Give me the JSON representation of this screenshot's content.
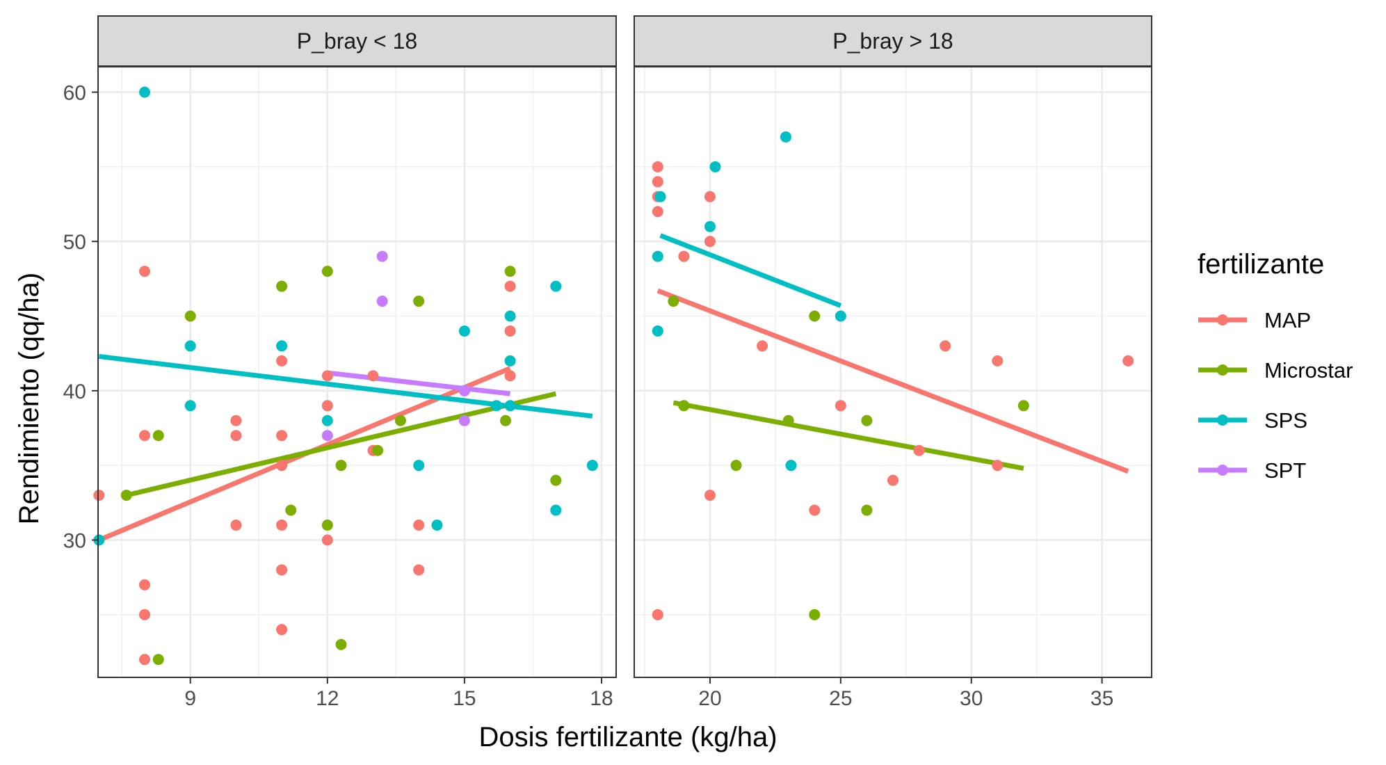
{
  "chart_data": {
    "type": "scatter",
    "xlabel": "Dosis  fertilizante (kg/ha)",
    "ylabel": "Rendimiento (qq/ha)",
    "legend": {
      "title": "fertilizante",
      "position": "right",
      "entries": [
        "MAP",
        "Microstar",
        "SPS",
        "SPT"
      ]
    },
    "colors": {
      "MAP": "#F8766D",
      "Microstar": "#7CAE00",
      "SPS": "#00BFC4",
      "SPT": "#C77CFF"
    },
    "grid": true,
    "ylim": [
      20.8,
      61.7
    ],
    "yticks": [
      30,
      40,
      50,
      60
    ],
    "panels": [
      {
        "strip": "P_bray < 18",
        "xlim": [
          6.98,
          18.32
        ],
        "xticks": [
          9,
          12,
          15,
          18
        ],
        "series": [
          {
            "name": "MAP",
            "points": [
              [
                7,
                33
              ],
              [
                8,
                48
              ],
              [
                8,
                37
              ],
              [
                8,
                27
              ],
              [
                8,
                25
              ],
              [
                8,
                22
              ],
              [
                10,
                38
              ],
              [
                10,
                37
              ],
              [
                10,
                31
              ],
              [
                11,
                42
              ],
              [
                11,
                37
              ],
              [
                11,
                35
              ],
              [
                11,
                31
              ],
              [
                11,
                28
              ],
              [
                11,
                24
              ],
              [
                12,
                41
              ],
              [
                12,
                39
              ],
              [
                12,
                30
              ],
              [
                13,
                41
              ],
              [
                13,
                36
              ],
              [
                14,
                31
              ],
              [
                14,
                28
              ],
              [
                16,
                47
              ],
              [
                16,
                44
              ],
              [
                16,
                41
              ]
            ],
            "fit": [
              [
                7,
                30.0
              ],
              [
                16,
                41.5
              ]
            ]
          },
          {
            "name": "Microstar",
            "points": [
              [
                7.6,
                33
              ],
              [
                8.3,
                37
              ],
              [
                8.3,
                22
              ],
              [
                9,
                45
              ],
              [
                11,
                47
              ],
              [
                11.2,
                32
              ],
              [
                12,
                48
              ],
              [
                12,
                31
              ],
              [
                12.3,
                35
              ],
              [
                12.3,
                23
              ],
              [
                13.1,
                36
              ],
              [
                13.6,
                38
              ],
              [
                14,
                46
              ],
              [
                15.9,
                38
              ],
              [
                16,
                48
              ],
              [
                17,
                34
              ]
            ],
            "fit": [
              [
                7.6,
                33.0
              ],
              [
                17,
                39.8
              ]
            ]
          },
          {
            "name": "SPS",
            "points": [
              [
                7,
                30
              ],
              [
                8,
                60
              ],
              [
                9,
                43
              ],
              [
                9,
                39
              ],
              [
                11,
                43
              ],
              [
                12,
                38
              ],
              [
                14,
                35
              ],
              [
                14.4,
                31
              ],
              [
                15,
                44
              ],
              [
                15,
                40
              ],
              [
                15.7,
                39
              ],
              [
                16,
                45
              ],
              [
                16,
                42
              ],
              [
                16,
                39
              ],
              [
                17,
                47
              ],
              [
                17,
                32
              ],
              [
                17.8,
                35
              ]
            ],
            "fit": [
              [
                7,
                42.3
              ],
              [
                17.8,
                38.3
              ]
            ]
          },
          {
            "name": "SPT",
            "points": [
              [
                12,
                37
              ],
              [
                13.2,
                49
              ],
              [
                13.2,
                46
              ],
              [
                15,
                40
              ],
              [
                15,
                38
              ]
            ],
            "fit": [
              [
                12,
                41.2
              ],
              [
                16,
                39.8
              ]
            ]
          }
        ]
      },
      {
        "strip": "P_bray > 18",
        "xlim": [
          17.1,
          36.9
        ],
        "xticks": [
          20,
          25,
          30,
          35
        ],
        "series": [
          {
            "name": "MAP",
            "points": [
              [
                18,
                55
              ],
              [
                18,
                54
              ],
              [
                18,
                53
              ],
              [
                18,
                52
              ],
              [
                18,
                25
              ],
              [
                19,
                49
              ],
              [
                20,
                53
              ],
              [
                20,
                50
              ],
              [
                20,
                33
              ],
              [
                22,
                43
              ],
              [
                24,
                32
              ],
              [
                25,
                39
              ],
              [
                27,
                34
              ],
              [
                28,
                36
              ],
              [
                29,
                43
              ],
              [
                31,
                42
              ],
              [
                31,
                35
              ],
              [
                36,
                42
              ]
            ],
            "fit": [
              [
                18,
                46.7
              ],
              [
                36,
                34.6
              ]
            ]
          },
          {
            "name": "Microstar",
            "points": [
              [
                18.6,
                46
              ],
              [
                19,
                39
              ],
              [
                21,
                35
              ],
              [
                23,
                38
              ],
              [
                24,
                45
              ],
              [
                24,
                25
              ],
              [
                26,
                38
              ],
              [
                26,
                32
              ],
              [
                32,
                39
              ]
            ],
            "fit": [
              [
                18.6,
                39.2
              ],
              [
                32,
                34.8
              ]
            ]
          },
          {
            "name": "SPS",
            "points": [
              [
                18,
                49
              ],
              [
                18,
                44
              ],
              [
                18.1,
                53
              ],
              [
                20,
                51
              ],
              [
                20.2,
                55
              ],
              [
                22.9,
                57
              ],
              [
                23.1,
                35
              ],
              [
                25,
                45
              ]
            ],
            "fit": [
              [
                18.1,
                50.4
              ],
              [
                25,
                45.7
              ]
            ]
          }
        ]
      }
    ]
  }
}
